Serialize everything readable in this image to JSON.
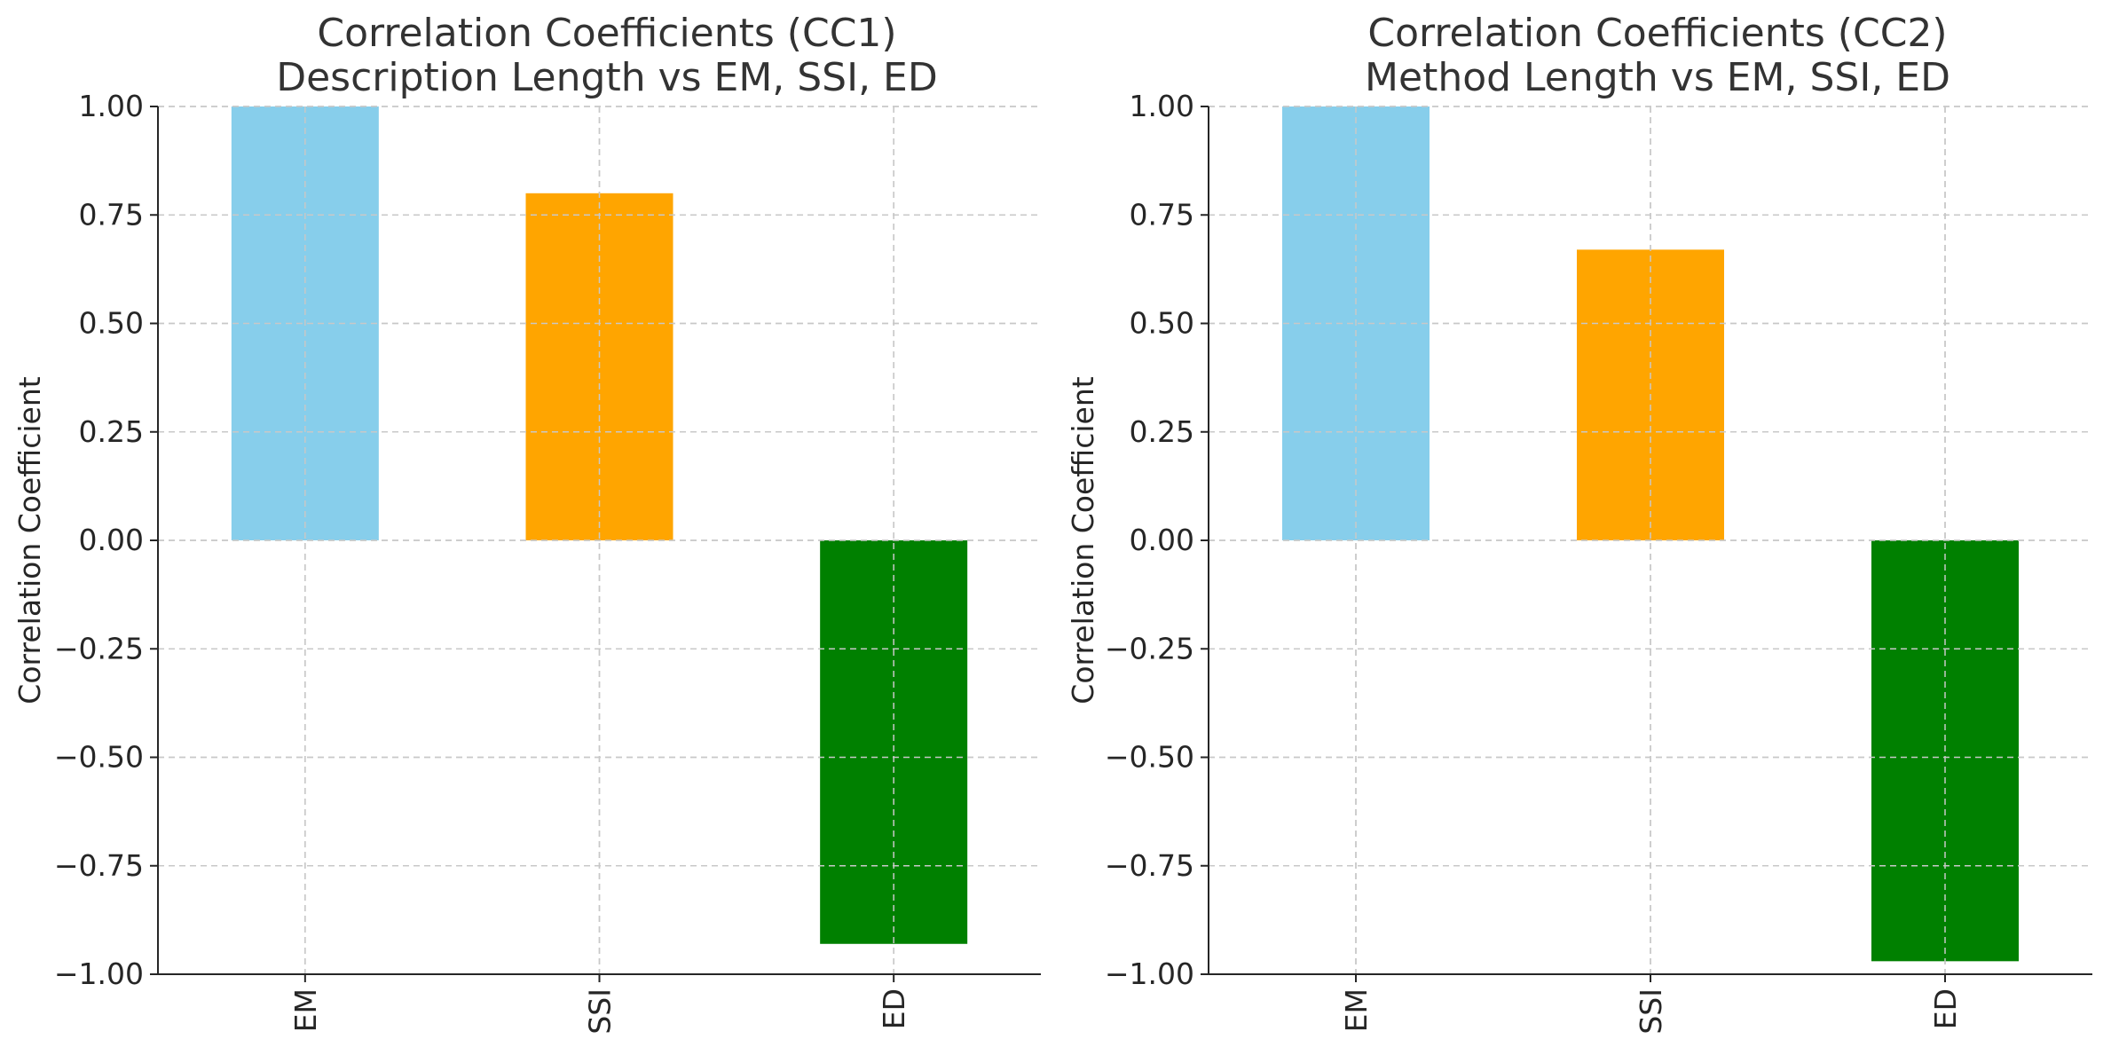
{
  "chart_data": [
    {
      "type": "bar",
      "title": [
        "Correlation Coefficients (CC1)",
        "Description Length vs EM, SSI, ED"
      ],
      "ylabel": "Correlation Coefficient",
      "xlabel": "",
      "categories": [
        "EM",
        "SSI",
        "ED"
      ],
      "values": [
        1.0,
        0.8,
        -0.93
      ],
      "colors": [
        "#87CEEB",
        "#FFA500",
        "#008000"
      ],
      "ylim": [
        -1.0,
        1.0
      ],
      "yticks": [
        "1.00",
        "0.75",
        "0.50",
        "0.25",
        "0.00",
        "−0.25",
        "−0.50",
        "−0.75",
        "−1.00"
      ],
      "ytick_values": [
        1.0,
        0.75,
        0.5,
        0.25,
        0.0,
        -0.25,
        -0.5,
        -0.75,
        -1.0
      ],
      "grid": true,
      "legend": "none"
    },
    {
      "type": "bar",
      "title": [
        "Correlation Coefficients (CC2)",
        "Method Length vs EM, SSI, ED"
      ],
      "ylabel": "Correlation Coefficient",
      "xlabel": "",
      "categories": [
        "EM",
        "SSI",
        "ED"
      ],
      "values": [
        1.0,
        0.67,
        -0.97
      ],
      "colors": [
        "#87CEEB",
        "#FFA500",
        "#008000"
      ],
      "ylim": [
        -1.0,
        1.0
      ],
      "yticks": [
        "1.00",
        "0.75",
        "0.50",
        "0.25",
        "0.00",
        "−0.25",
        "−0.50",
        "−0.75",
        "−1.00"
      ],
      "ytick_values": [
        1.0,
        0.75,
        0.5,
        0.25,
        0.0,
        -0.25,
        -0.5,
        -0.75,
        -1.0
      ],
      "grid": true,
      "legend": "none"
    }
  ]
}
